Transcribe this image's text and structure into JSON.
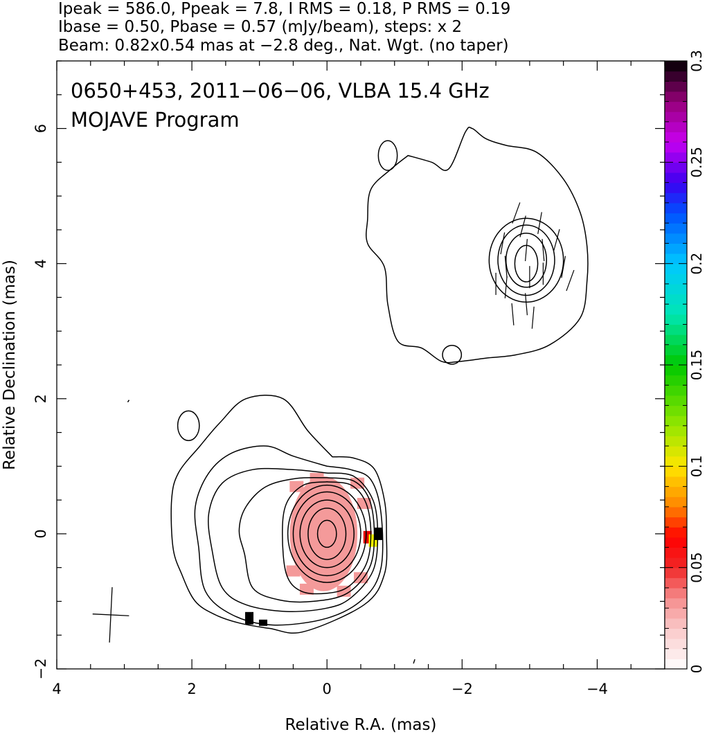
{
  "header": {
    "line1": "Ipeak = 586.0, Ppeak = 7.8, I RMS = 0.18, P RMS = 0.19",
    "line2": "Ibase = 0.50, Pbase = 0.57 (mJy/beam), steps: x 2",
    "line3": "Beam: 0.82x0.54 mas at −2.8 deg., Nat. Wgt. (no taper)"
  },
  "chart_data": {
    "type": "contour",
    "annotation_line1": "0650+453, 2011−06−06, VLBA 15.4 GHz",
    "annotation_line2": "MOJAVE Program",
    "xlabel": "Relative R.A. (mas)",
    "ylabel": "Relative Declination (mas)",
    "xlim": [
      4,
      -5
    ],
    "ylim": [
      -2,
      7
    ],
    "x_ticks": [
      {
        "value": 4,
        "label": "4"
      },
      {
        "value": 2,
        "label": "2"
      },
      {
        "value": 0,
        "label": "0"
      },
      {
        "value": -2,
        "label": "−2"
      },
      {
        "value": -4,
        "label": "−4"
      }
    ],
    "y_ticks": [
      {
        "value": -2,
        "label": "−2"
      },
      {
        "value": 0,
        "label": "0"
      },
      {
        "value": 2,
        "label": "2"
      },
      {
        "value": 4,
        "label": "4"
      },
      {
        "value": 6,
        "label": "6"
      }
    ],
    "colorbar": {
      "range": [
        0,
        0.3
      ],
      "ticks": [
        {
          "value": 0,
          "label": "0"
        },
        {
          "value": 0.05,
          "label": "0.05"
        },
        {
          "value": 0.1,
          "label": "0.1"
        },
        {
          "value": 0.15,
          "label": "0.15"
        },
        {
          "value": 0.2,
          "label": "0.2"
        },
        {
          "value": 0.25,
          "label": "0.25"
        },
        {
          "value": 0.3,
          "label": "0.3"
        }
      ]
    },
    "core": {
      "x": 0,
      "y": 0,
      "peak_mJy_per_beam": 586.0
    },
    "jet_component": {
      "x": -2.95,
      "y": 4.05
    },
    "beam": {
      "major_mas": 0.82,
      "minor_mas": 0.54,
      "pa_deg": -2.8,
      "center_x": 3.2,
      "center_y": -1.2
    },
    "core_contours": [
      [
        [
          -0.08,
          1.14
        ],
        [
          -0.4,
          1.12
        ],
        [
          -0.7,
          0.96
        ],
        [
          -0.85,
          0.5
        ],
        [
          -0.88,
          0
        ],
        [
          -0.85,
          -0.6
        ],
        [
          -0.55,
          -1.05
        ],
        [
          0.35,
          -1.45
        ],
        [
          0.85,
          -1.4
        ],
        [
          1.3,
          -1.32
        ],
        [
          1.65,
          -1.2
        ],
        [
          1.95,
          -1.0
        ],
        [
          2.15,
          -0.6
        ],
        [
          2.28,
          -0.2
        ],
        [
          2.3,
          0.5
        ],
        [
          2.2,
          0.9
        ],
        [
          1.88,
          1.3
        ],
        [
          1.58,
          1.65
        ],
        [
          1.2,
          2.0
        ],
        [
          0.65,
          2.0
        ],
        [
          0.28,
          1.52
        ],
        [
          -0.08,
          1.14
        ]
      ],
      [
        [
          0.0,
          1.0
        ],
        [
          -0.35,
          0.95
        ],
        [
          -0.65,
          0.8
        ],
        [
          -0.8,
          0.3
        ],
        [
          -0.8,
          -0.5
        ],
        [
          -0.55,
          -0.95
        ],
        [
          0,
          -1.25
        ],
        [
          0.8,
          -1.35
        ],
        [
          1.4,
          -1.2
        ],
        [
          1.8,
          -0.85
        ],
        [
          1.9,
          -0.2
        ],
        [
          1.95,
          0.4
        ],
        [
          1.75,
          0.9
        ],
        [
          1.4,
          1.2
        ],
        [
          0.9,
          1.3
        ],
        [
          0.5,
          1.15
        ],
        [
          0.0,
          1.0
        ]
      ],
      [
        [
          0,
          0.9
        ],
        [
          -0.4,
          0.85
        ],
        [
          -0.68,
          0.5
        ],
        [
          -0.75,
          0
        ],
        [
          -0.68,
          -0.55
        ],
        [
          -0.35,
          -0.95
        ],
        [
          0,
          -1.1
        ],
        [
          0.6,
          -1.15
        ],
        [
          1.2,
          -1.05
        ],
        [
          1.55,
          -0.8
        ],
        [
          1.7,
          -0.25
        ],
        [
          1.75,
          0.3
        ],
        [
          1.55,
          0.75
        ],
        [
          1.1,
          0.95
        ],
        [
          0.5,
          0.95
        ],
        [
          0,
          0.9
        ]
      ],
      [
        [
          0,
          0.83
        ],
        [
          -0.4,
          0.78
        ],
        [
          -0.63,
          0.5
        ],
        [
          -0.7,
          0
        ],
        [
          -0.63,
          -0.5
        ],
        [
          -0.3,
          -0.88
        ],
        [
          0.2,
          -1.0
        ],
        [
          0.7,
          -0.98
        ],
        [
          1.1,
          -0.8
        ],
        [
          1.22,
          -0.3
        ],
        [
          1.3,
          0.05
        ],
        [
          1.2,
          0.4
        ],
        [
          0.9,
          0.7
        ],
        [
          0.45,
          0.82
        ],
        [
          0,
          0.83
        ]
      ],
      [
        [
          0,
          0.77
        ],
        [
          -0.36,
          0.72
        ],
        [
          -0.58,
          0.45
        ],
        [
          -0.65,
          0
        ],
        [
          -0.58,
          -0.45
        ],
        [
          -0.32,
          -0.78
        ],
        [
          0,
          -0.88
        ],
        [
          0.38,
          -0.85
        ],
        [
          0.6,
          -0.6
        ],
        [
          0.66,
          0
        ],
        [
          0.6,
          0.45
        ],
        [
          0.35,
          0.72
        ],
        [
          0,
          0.77
        ]
      ],
      {
        "cx": 0,
        "cy": 0,
        "rx": 0.58,
        "ry": 0.72
      },
      {
        "cx": 0,
        "cy": 0,
        "rx": 0.5,
        "ry": 0.62
      },
      {
        "cx": 0,
        "cy": 0,
        "rx": 0.4,
        "ry": 0.5
      },
      {
        "cx": 0,
        "cy": 0,
        "rx": 0.28,
        "ry": 0.38
      },
      {
        "cx": 0,
        "cy": 0,
        "rx": 0.14,
        "ry": 0.2
      }
    ],
    "jet_outer_contour": [
      [
        -1.2,
        5.6
      ],
      [
        -1.55,
        5.5
      ],
      [
        -1.8,
        5.4
      ],
      [
        -2.05,
        5.95
      ],
      [
        -2.15,
        6.0
      ],
      [
        -2.35,
        5.85
      ],
      [
        -2.65,
        5.75
      ],
      [
        -3.1,
        5.65
      ],
      [
        -3.5,
        5.25
      ],
      [
        -3.75,
        4.75
      ],
      [
        -3.85,
        4.25
      ],
      [
        -3.85,
        3.75
      ],
      [
        -3.75,
        3.2
      ],
      [
        -3.3,
        2.8
      ],
      [
        -2.8,
        2.65
      ],
      [
        -2.35,
        2.6
      ],
      [
        -1.95,
        2.55
      ],
      [
        -1.7,
        2.55
      ],
      [
        -1.4,
        2.75
      ],
      [
        -1.05,
        2.85
      ],
      [
        -0.9,
        3.4
      ],
      [
        -0.85,
        3.95
      ],
      [
        -0.6,
        4.3
      ],
      [
        -0.6,
        4.65
      ],
      [
        -0.65,
        5.1
      ],
      [
        -0.95,
        5.4
      ],
      [
        -1.2,
        5.6
      ]
    ],
    "jet_inner_contours": [
      {
        "cx": -2.95,
        "cy": 4.05,
        "rx": 0.55,
        "ry": 0.62
      },
      {
        "cx": -2.95,
        "cy": 4.05,
        "rx": 0.42,
        "ry": 0.52
      },
      {
        "cx": -2.95,
        "cy": 4.05,
        "rx": 0.3,
        "ry": 0.4
      },
      {
        "cx": -2.95,
        "cy": 4.0,
        "rx": 0.17,
        "ry": 0.27
      }
    ],
    "islands": [
      {
        "cx": -0.9,
        "cy": 5.6,
        "rx": 0.14,
        "ry": 0.22
      },
      {
        "cx": 2.05,
        "cy": 1.6,
        "rx": 0.16,
        "ry": 0.22
      },
      {
        "cx": -1.85,
        "cy": 2.65,
        "rx": 0.14,
        "ry": 0.14
      }
    ],
    "polarization_patch": {
      "cx": 0.05,
      "cy": 0.0,
      "rx": 0.5,
      "ry": 0.85,
      "color": "#f49a9a"
    },
    "polarization_edge_pixels": [
      {
        "x": -0.6,
        "y": -0.05,
        "value": 0.05,
        "color": "#e60000"
      },
      {
        "x": -0.68,
        "y": -0.1,
        "value": 0.11,
        "color": "#ffff00"
      },
      {
        "x": -0.76,
        "y": 0.0,
        "value": 0.3,
        "color": "#000000"
      },
      {
        "x": 1.15,
        "y": -1.25,
        "value": 0.3,
        "color": "#000000"
      }
    ],
    "evpa_vectors": [
      [
        -2.6,
        4.3,
        80
      ],
      [
        -2.65,
        3.95,
        95
      ],
      [
        -2.65,
        3.65,
        85
      ],
      [
        -2.8,
        4.75,
        70
      ],
      [
        -2.9,
        4.55,
        75
      ],
      [
        -2.95,
        4.2,
        85
      ],
      [
        -3.0,
        3.8,
        90
      ],
      [
        -2.95,
        3.4,
        95
      ],
      [
        -3.15,
        4.6,
        80
      ],
      [
        -3.2,
        4.2,
        95
      ],
      [
        -3.2,
        3.85,
        90
      ],
      [
        -3.05,
        3.2,
        85
      ],
      [
        -2.75,
        3.25,
        95
      ],
      [
        -3.4,
        4.35,
        75
      ],
      [
        -3.5,
        3.95,
        80
      ],
      [
        -3.6,
        3.75,
        70
      ],
      [
        -2.5,
        3.7,
        90
      ]
    ]
  }
}
